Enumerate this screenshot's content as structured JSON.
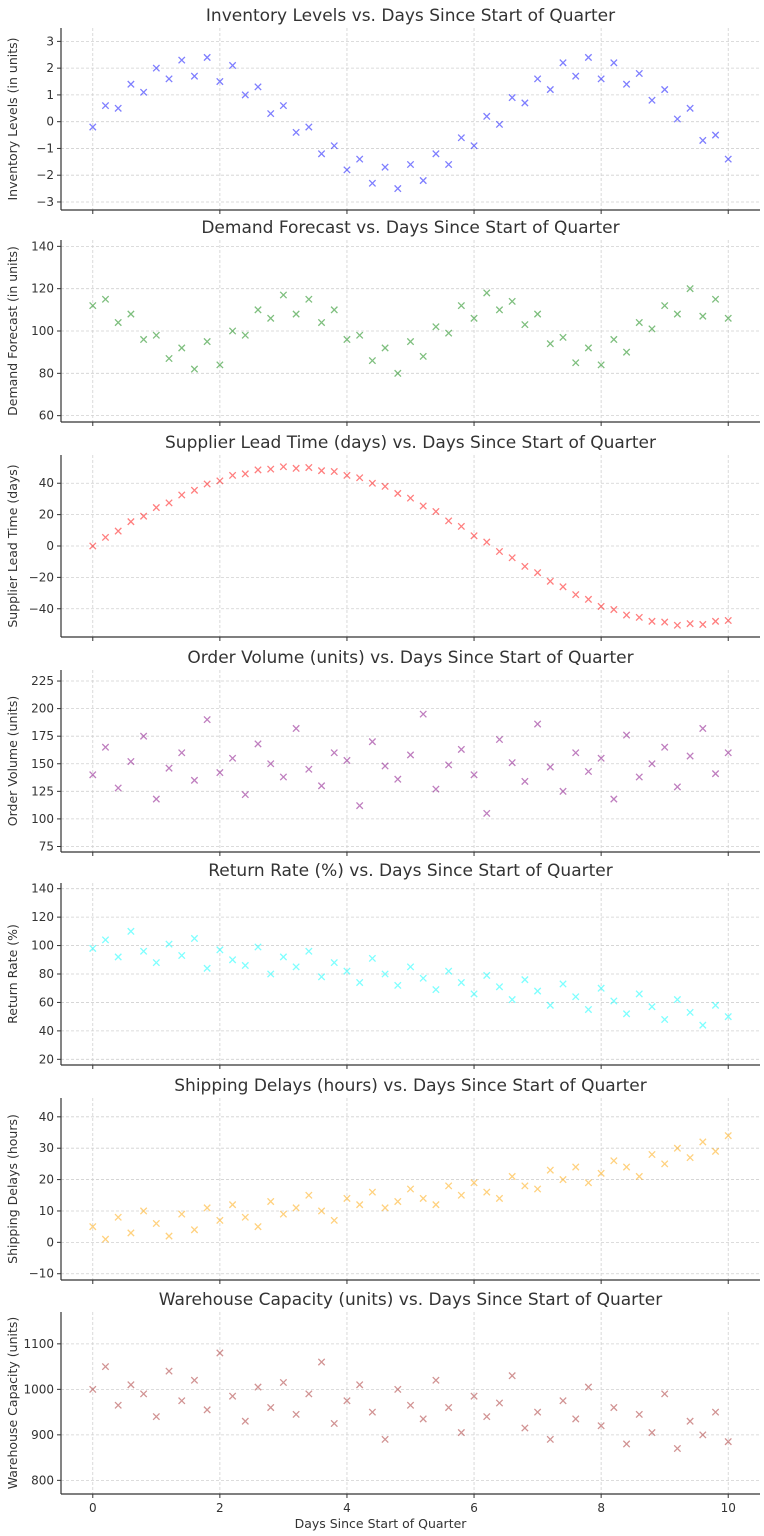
{
  "chart_data": [
    {
      "type": "scatter",
      "title": "Inventory Levels vs. Days Since Start of Quarter",
      "xlabel": "",
      "ylabel": "Inventory Levels (in units)",
      "color": "#0000ff",
      "marker": "x",
      "xlim": [
        -0.5,
        10.5
      ],
      "ylim": [
        -3.3,
        3.5
      ],
      "yticks": [
        -3,
        -2,
        -1,
        0,
        1,
        2,
        3
      ],
      "grid": true,
      "y": [
        -0.2,
        0.6,
        0.5,
        1.4,
        1.1,
        2.0,
        1.6,
        2.3,
        1.7,
        2.4,
        1.5,
        2.1,
        1.0,
        1.3,
        0.3,
        0.6,
        -0.4,
        -0.2,
        -1.2,
        -0.9,
        -1.8,
        -1.4,
        -2.3,
        -1.7,
        -2.5,
        -1.6,
        -2.2,
        -1.2,
        -1.6,
        -0.6,
        -0.9,
        0.2,
        -0.1,
        0.9,
        0.7,
        1.6,
        1.2,
        2.2,
        1.7,
        2.4,
        1.6,
        2.2,
        1.4,
        1.8,
        0.8,
        1.2,
        0.1,
        0.5,
        -0.7,
        -0.5,
        -1.4
      ]
    },
    {
      "type": "scatter",
      "title": "Demand Forecast vs. Days Since Start of Quarter",
      "xlabel": "",
      "ylabel": "Demand Forecast (in units)",
      "color": "#008000",
      "marker": "x",
      "xlim": [
        -0.5,
        10.5
      ],
      "ylim": [
        57,
        143
      ],
      "yticks": [
        60,
        80,
        100,
        120,
        140
      ],
      "grid": true,
      "y": [
        112,
        115,
        104,
        108,
        96,
        98,
        87,
        92,
        82,
        95,
        84,
        100,
        98,
        110,
        106,
        117,
        108,
        115,
        104,
        110,
        96,
        98,
        86,
        92,
        80,
        95,
        88,
        102,
        99,
        112,
        106,
        118,
        110,
        114,
        103,
        108,
        94,
        97,
        85,
        92,
        84,
        96,
        90,
        104,
        101,
        112,
        108,
        120,
        107,
        115,
        106
      ]
    },
    {
      "type": "scatter",
      "title": "Supplier Lead Time (days) vs. Days Since Start of Quarter",
      "xlabel": "",
      "ylabel": "Supplier Lead Time (days)",
      "color": "#ff0000",
      "marker": "x",
      "xlim": [
        -0.5,
        10.5
      ],
      "ylim": [
        -58,
        58
      ],
      "yticks": [
        -40,
        -20,
        0,
        20,
        40
      ],
      "grid": true,
      "y": [
        0,
        5.5,
        9.5,
        15.5,
        19,
        24.5,
        27.5,
        32.5,
        35.5,
        39.5,
        41.5,
        45,
        46,
        48.5,
        49,
        50.5,
        49.5,
        50,
        48,
        47.5,
        45,
        43.5,
        40,
        38,
        33.5,
        30.5,
        25.5,
        22,
        16,
        12.5,
        6.5,
        2.5,
        -3.5,
        -7.5,
        -13,
        -17,
        -22.5,
        -26,
        -31,
        -34,
        -38.5,
        -40.5,
        -44,
        -45.5,
        -48,
        -48.5,
        -50.5,
        -49.5,
        -50,
        -48,
        -47.5
      ]
    },
    {
      "type": "scatter",
      "title": "Order Volume (units) vs. Days Since Start of Quarter",
      "xlabel": "",
      "ylabel": "Order Volume (units)",
      "color": "#800080",
      "marker": "x",
      "xlim": [
        -0.5,
        10.5
      ],
      "ylim": [
        70,
        235
      ],
      "yticks": [
        75,
        100,
        125,
        150,
        175,
        200,
        225
      ],
      "grid": true,
      "y": [
        140,
        165,
        128,
        152,
        175,
        118,
        146,
        160,
        135,
        190,
        142,
        155,
        122,
        168,
        150,
        138,
        182,
        145,
        130,
        160,
        153,
        112,
        170,
        148,
        136,
        158,
        195,
        127,
        149,
        163,
        140,
        105,
        172,
        151,
        134,
        186,
        147,
        125,
        160,
        143,
        155,
        118,
        176,
        138,
        150,
        165,
        129,
        157,
        182,
        141,
        160
      ]
    },
    {
      "type": "scatter",
      "title": "Return Rate (%) vs. Days Since Start of Quarter",
      "xlabel": "",
      "ylabel": "Return Rate (%)",
      "color": "#00ffff",
      "marker": "x",
      "xlim": [
        -0.5,
        10.5
      ],
      "ylim": [
        16,
        144
      ],
      "yticks": [
        20,
        40,
        60,
        80,
        100,
        120,
        140
      ],
      "grid": true,
      "y": [
        98,
        104,
        92,
        110,
        96,
        88,
        101,
        93,
        105,
        84,
        97,
        90,
        86,
        99,
        80,
        92,
        85,
        96,
        78,
        88,
        82,
        74,
        91,
        80,
        72,
        85,
        77,
        69,
        82,
        74,
        66,
        79,
        71,
        62,
        76,
        68,
        58,
        73,
        64,
        55,
        70,
        61,
        52,
        66,
        57,
        48,
        62,
        53,
        44,
        58,
        50
      ]
    },
    {
      "type": "scatter",
      "title": "Shipping Delays (hours) vs. Days Since Start of Quarter",
      "xlabel": "",
      "ylabel": "Shipping Delays (hours)",
      "color": "#ffa500",
      "marker": "x",
      "xlim": [
        -0.5,
        10.5
      ],
      "ylim": [
        -12,
        46
      ],
      "yticks": [
        -10,
        0,
        10,
        20,
        30,
        40
      ],
      "grid": true,
      "y": [
        5,
        1,
        8,
        3,
        10,
        6,
        2,
        9,
        4,
        11,
        7,
        12,
        8,
        5,
        13,
        9,
        11,
        15,
        10,
        7,
        14,
        12,
        16,
        11,
        13,
        17,
        14,
        12,
        18,
        15,
        19,
        16,
        14,
        21,
        18,
        17,
        23,
        20,
        24,
        19,
        22,
        26,
        24,
        21,
        28,
        25,
        30,
        27,
        32,
        29,
        34
      ]
    },
    {
      "type": "scatter",
      "title": "Warehouse Capacity (units) vs. Days Since Start of Quarter",
      "xlabel": "Days Since Start of Quarter",
      "ylabel": "Warehouse Capacity (units)",
      "color": "#a52a2a",
      "marker": "x",
      "xlim": [
        -0.5,
        10.5
      ],
      "ylim": [
        770,
        1170
      ],
      "yticks": [
        800,
        900,
        1000,
        1100
      ],
      "xticks": [
        0,
        2,
        4,
        6,
        8,
        10
      ],
      "grid": true,
      "y": [
        1000,
        1050,
        965,
        1010,
        990,
        940,
        1040,
        975,
        1020,
        955,
        1080,
        985,
        930,
        1005,
        960,
        1015,
        945,
        990,
        1060,
        925,
        975,
        1010,
        950,
        890,
        1000,
        965,
        935,
        1020,
        960,
        905,
        985,
        940,
        970,
        1030,
        915,
        950,
        890,
        975,
        935,
        1005,
        920,
        960,
        880,
        945,
        905,
        990,
        870,
        930,
        900,
        950,
        885
      ]
    }
  ],
  "x": [
    0,
    0.2,
    0.4,
    0.6,
    0.8,
    1,
    1.2,
    1.4,
    1.6,
    1.8,
    2,
    2.2,
    2.4,
    2.6,
    2.8,
    3,
    3.2,
    3.4,
    3.6,
    3.8,
    4,
    4.2,
    4.4,
    4.6,
    4.8,
    5,
    5.2,
    5.4,
    5.6,
    5.8,
    6,
    6.2,
    6.4,
    6.6,
    6.8,
    7,
    7.2,
    7.4,
    7.6,
    7.8,
    8,
    8.2,
    8.4,
    8.6,
    8.8,
    9,
    9.2,
    9.4,
    9.6,
    9.8,
    10
  ],
  "xticks": [
    0,
    2,
    4,
    6,
    8,
    10
  ]
}
